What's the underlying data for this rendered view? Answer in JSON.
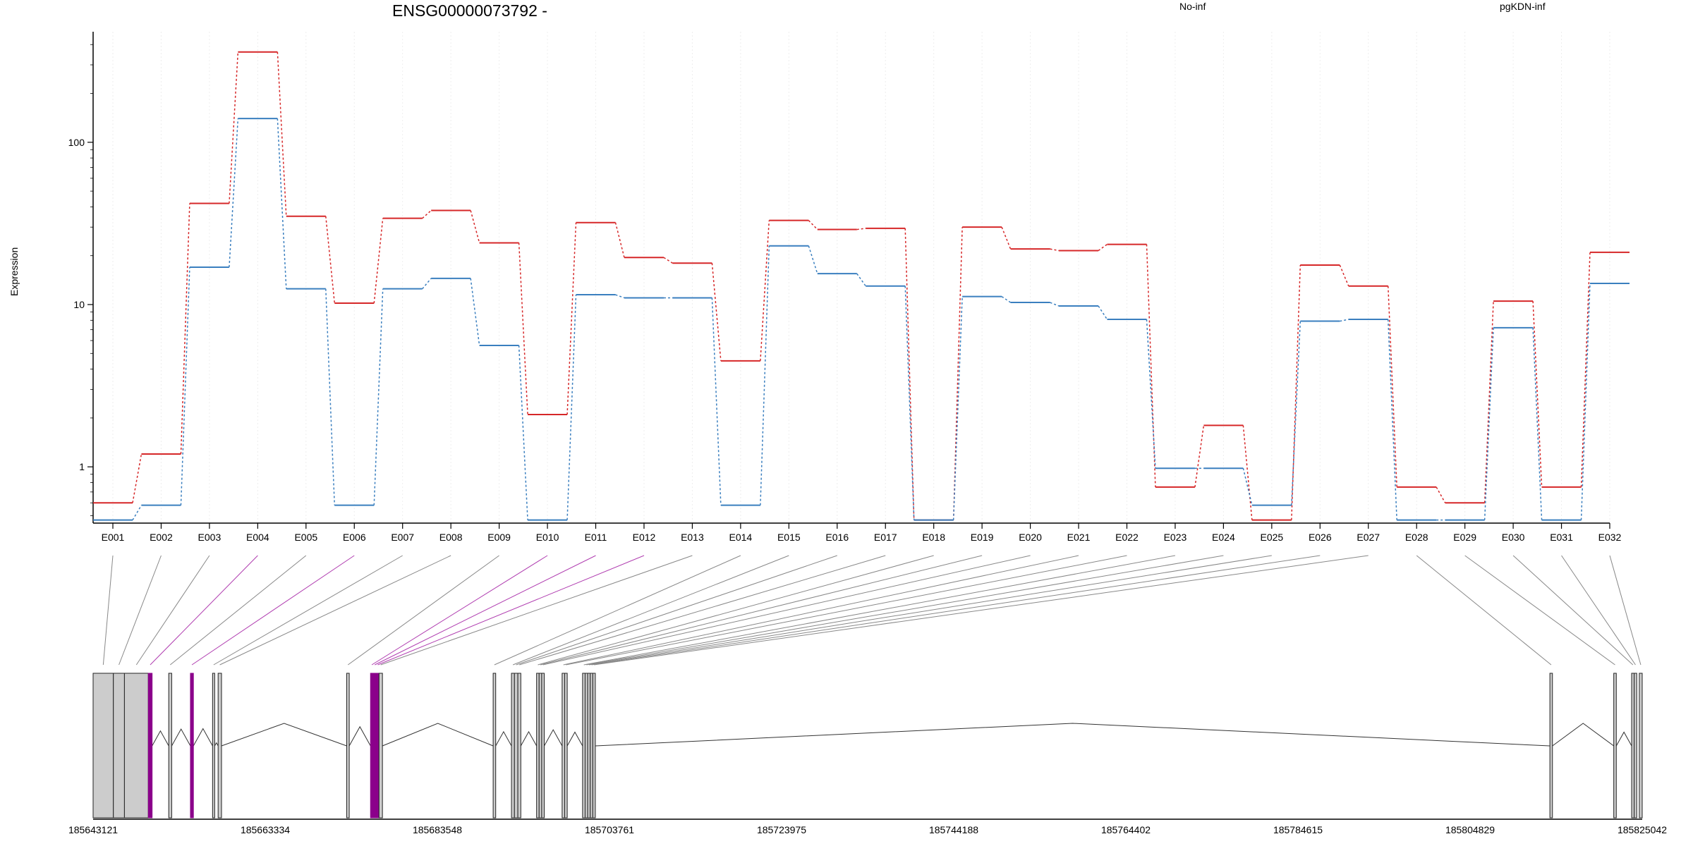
{
  "chart_data": [
    {
      "type": "line",
      "title": "ENSG00000073792 -",
      "ylabel": "Expression",
      "y_scale": "log",
      "ylim": [
        0.45,
        480
      ],
      "y_ticks": [
        {
          "value": 1,
          "label": "1"
        },
        {
          "value": 10,
          "label": "10"
        },
        {
          "value": 100,
          "label": "100"
        }
      ],
      "categories": [
        "E001",
        "E002",
        "E003",
        "E004",
        "E005",
        "E006",
        "E007",
        "E008",
        "E009",
        "E010",
        "E011",
        "E012",
        "E013",
        "E014",
        "E015",
        "E016",
        "E017",
        "E018",
        "E019",
        "E020",
        "E021",
        "E022",
        "E023",
        "E024",
        "E025",
        "E026",
        "E027",
        "E028",
        "E029",
        "E030",
        "E031",
        "E032"
      ],
      "series": [
        {
          "name": "No-inf",
          "color": "#d62728",
          "values": [
            0.6,
            1.2,
            42,
            360,
            35,
            10.2,
            34,
            38,
            24,
            2.1,
            32,
            19.5,
            18,
            4.5,
            33,
            29,
            29.5,
            0.47,
            30,
            22,
            21.5,
            23.5,
            0.75,
            1.8,
            0.47,
            17.5,
            13,
            0.75,
            0.6,
            10.5,
            0.75,
            21
          ]
        },
        {
          "name": "pgKDN-inf",
          "color": "#3a7fbf",
          "values": [
            0.47,
            0.58,
            17,
            140,
            12.5,
            0.58,
            12.5,
            14.5,
            5.6,
            0.47,
            11.5,
            11,
            11,
            0.58,
            23,
            15.5,
            13,
            0.47,
            11.2,
            10.3,
            9.8,
            8.1,
            0.98,
            0.98,
            0.58,
            7.9,
            8.1,
            0.47,
            0.47,
            7.2,
            0.47,
            13.5
          ]
        }
      ],
      "grid": false,
      "legend": "top"
    },
    {
      "type": "gene-model",
      "x_ticks": [
        "185643121",
        "185663334",
        "185683548",
        "185703761",
        "185723975",
        "185744188",
        "185764402",
        "185784615",
        "185804829",
        "185825042"
      ],
      "xlim": [
        185643121,
        185825042
      ],
      "exons": [
        {
          "id": "E001",
          "start": 185643121,
          "end": 185645500,
          "highlight": false
        },
        {
          "id": "E002",
          "start": 185645500,
          "end": 185646800,
          "highlight": false
        },
        {
          "id": "E003",
          "start": 185646800,
          "end": 185649600,
          "highlight": false
        },
        {
          "id": "E004",
          "start": 185649610,
          "end": 185650050,
          "highlight": true
        },
        {
          "id": "E005",
          "start": 185652000,
          "end": 185652350,
          "highlight": false
        },
        {
          "id": "E006",
          "start": 185654550,
          "end": 185654900,
          "highlight": true
        },
        {
          "id": "E007",
          "start": 185657150,
          "end": 185657400,
          "highlight": false
        },
        {
          "id": "E008",
          "start": 185657800,
          "end": 185658200,
          "highlight": false
        },
        {
          "id": "E009",
          "start": 185672900,
          "end": 185673200,
          "highlight": false
        },
        {
          "id": "E010",
          "start": 185675700,
          "end": 185676000,
          "highlight": true
        },
        {
          "id": "E011",
          "start": 185676000,
          "end": 185676400,
          "highlight": true
        },
        {
          "id": "E012",
          "start": 185676400,
          "end": 185676700,
          "highlight": true
        },
        {
          "id": "E013",
          "start": 185676700,
          "end": 185677100,
          "highlight": false
        },
        {
          "id": "E014",
          "start": 185690100,
          "end": 185690400,
          "highlight": false
        },
        {
          "id": "E015",
          "start": 185692250,
          "end": 185692600,
          "highlight": false
        },
        {
          "id": "E016",
          "start": 185692600,
          "end": 185693000,
          "highlight": false
        },
        {
          "id": "E017",
          "start": 185693000,
          "end": 185693350,
          "highlight": false
        },
        {
          "id": "E018",
          "start": 185695200,
          "end": 185695500,
          "highlight": false
        },
        {
          "id": "E019",
          "start": 185695500,
          "end": 185695800,
          "highlight": false
        },
        {
          "id": "E020",
          "start": 185695800,
          "end": 185696100,
          "highlight": false
        },
        {
          "id": "E021",
          "start": 185698200,
          "end": 185698500,
          "highlight": false
        },
        {
          "id": "E022",
          "start": 185698500,
          "end": 185698800,
          "highlight": false
        },
        {
          "id": "E023",
          "start": 185700600,
          "end": 185700900,
          "highlight": false
        },
        {
          "id": "E024",
          "start": 185700900,
          "end": 185701200,
          "highlight": false
        },
        {
          "id": "E025",
          "start": 185701200,
          "end": 185701500,
          "highlight": false
        },
        {
          "id": "E026",
          "start": 185701500,
          "end": 185701800,
          "highlight": false
        },
        {
          "id": "E027",
          "start": 185701800,
          "end": 185702100,
          "highlight": false
        },
        {
          "id": "E028",
          "start": 185814200,
          "end": 185814500,
          "highlight": false
        },
        {
          "id": "E029",
          "start": 185821700,
          "end": 185822000,
          "highlight": false
        },
        {
          "id": "E030",
          "start": 185823800,
          "end": 185824100,
          "highlight": false
        },
        {
          "id": "E031",
          "start": 185824100,
          "end": 185824400,
          "highlight": false
        },
        {
          "id": "E032",
          "start": 185824700,
          "end": 185825042,
          "highlight": false
        }
      ],
      "colors": {
        "exon_fill": "#cccccc",
        "highlight": "#8b008b",
        "connector": "#888888",
        "highlight_connector": "#b03db0"
      }
    }
  ]
}
